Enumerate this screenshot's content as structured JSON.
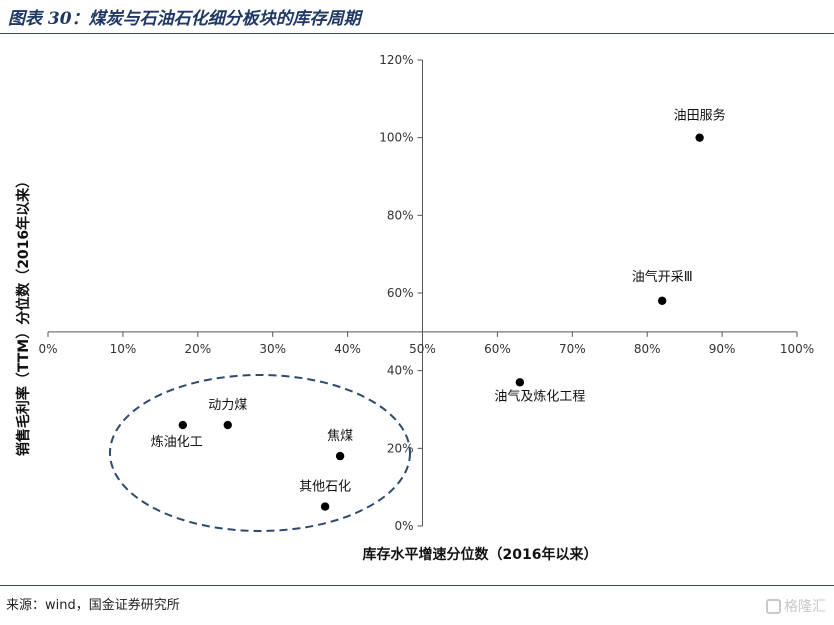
{
  "figure": {
    "title": "图表 30：煤炭与石油石化细分板块的库存周期",
    "source": "来源：wind，国金证券研究所",
    "watermark": "格隆汇"
  },
  "colors": {
    "title": "#1f3864",
    "rule": "#1f4e79",
    "ellipse": "#2e4a6e",
    "point": "#000000"
  },
  "chart_data": {
    "type": "scatter",
    "xlabel": "库存水平增速分位数（2016年以来）",
    "ylabel": "销售毛利率（TTM）分位数（2016年以来）",
    "xlim": [
      0,
      100
    ],
    "ylim": [
      0,
      120
    ],
    "x_ticks": [
      0,
      10,
      20,
      30,
      40,
      50,
      60,
      70,
      80,
      90,
      100
    ],
    "y_ticks": [
      0,
      20,
      40,
      60,
      80,
      100,
      120
    ],
    "x_tick_labels": [
      "0%",
      "10%",
      "20%",
      "30%",
      "40%",
      "50%",
      "60%",
      "70%",
      "80%",
      "90%",
      "100%"
    ],
    "y_tick_labels": [
      "0%",
      "20%",
      "40%",
      "60%",
      "80%",
      "100%",
      "120%"
    ],
    "axis_cross": {
      "x": 50,
      "y": 50
    },
    "grid": false,
    "points": [
      {
        "label": "油田服务",
        "x": 87,
        "y": 100
      },
      {
        "label": "油气开采Ⅲ",
        "x": 82,
        "y": 58
      },
      {
        "label": "油气及炼化工程",
        "x": 63,
        "y": 37
      },
      {
        "label": "动力煤",
        "x": 24,
        "y": 26
      },
      {
        "label": "炼油化工",
        "x": 18,
        "y": 26
      },
      {
        "label": "焦煤",
        "x": 39,
        "y": 18
      },
      {
        "label": "其他石化",
        "x": 37,
        "y": 5
      }
    ],
    "annotations": [
      {
        "type": "dashed-ellipse",
        "encloses": [
          "动力煤",
          "炼油化工",
          "焦煤",
          "其他石化"
        ]
      }
    ]
  }
}
